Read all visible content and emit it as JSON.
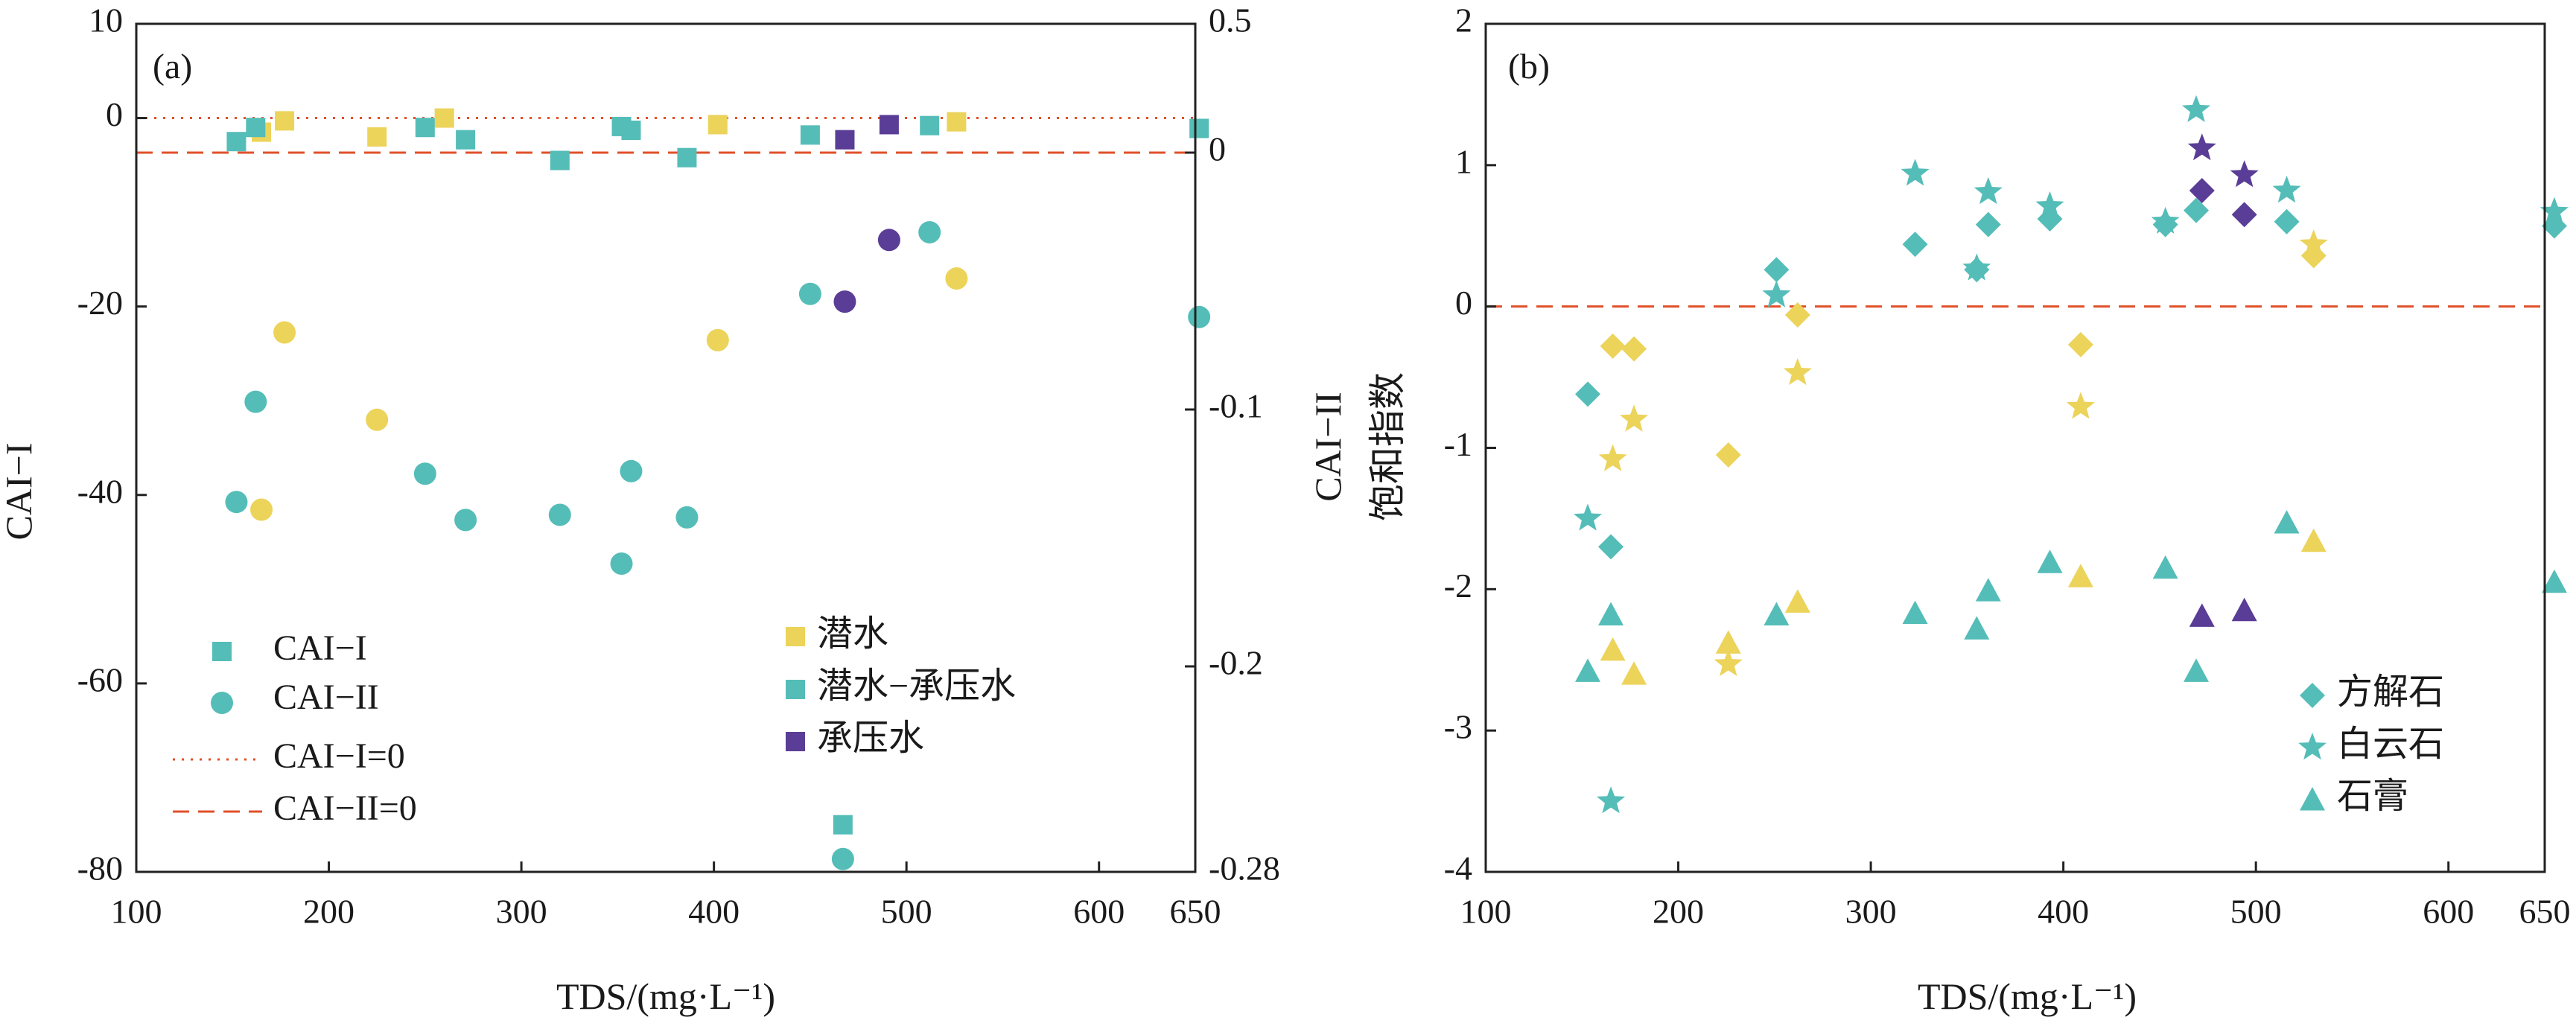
{
  "colors": {
    "phreatic": "#ecd35a",
    "phreatic_confined": "#55bdb8",
    "confined": "#5a3d96",
    "zero_line": "#e0502a",
    "axis": "#222222"
  },
  "chart_data": [
    {
      "type": "scatter",
      "panel_label": "(a)",
      "xlabel": "TDS/(mg·L⁻¹)",
      "ylabel": "CAI−I",
      "y2label": "CAI−II",
      "xlim": [
        100,
        650
      ],
      "ylim": [
        -80,
        10
      ],
      "y2lim": [
        -0.28,
        0.5
      ],
      "xticks": [
        "100",
        "200",
        "300",
        "400",
        "500",
        "600",
        "650"
      ],
      "yticks": [
        "10",
        "0",
        "-20",
        "-40",
        "-60",
        "-80"
      ],
      "y2ticks": [
        "0.5",
        "0",
        "-0.1",
        "-0.2",
        "-0.28"
      ],
      "legend_markers": {
        "items": [
          {
            "label": "CAI−I",
            "marker": "square"
          },
          {
            "label": "CAI−II",
            "marker": "circle"
          },
          {
            "label": "CAI−I=0",
            "marker": "dotted-line"
          },
          {
            "label": "CAI−II=0",
            "marker": "dashed-line"
          }
        ]
      },
      "legend_groups": {
        "items": [
          {
            "label": "潜水",
            "group": "phreatic"
          },
          {
            "label": "潜水−承压水",
            "group": "phreatic_confined"
          },
          {
            "label": "承压水",
            "group": "confined"
          }
        ]
      },
      "reference_lines": [
        {
          "label": "CAI−I=0",
          "axis": "y",
          "value": 0,
          "style": "dotted"
        },
        {
          "label": "CAI−II=0",
          "axis": "y2",
          "value": 0,
          "style": "dashed"
        }
      ],
      "series": [
        {
          "name": "CAI−I",
          "group": "phreatic",
          "marker": "square",
          "points": [
            [
              165,
              -1.5
            ],
            [
              177,
              -0.3
            ],
            [
              225,
              -2
            ],
            [
              260,
              0
            ],
            [
              402,
              -0.7
            ],
            [
              526,
              -0.4
            ]
          ]
        },
        {
          "name": "CAI−I",
          "group": "phreatic_confined",
          "marker": "square",
          "points": [
            [
              152,
              -2.5
            ],
            [
              162,
              -1
            ],
            [
              250,
              -1
            ],
            [
              271,
              -2.3
            ],
            [
              320,
              -4.5
            ],
            [
              352,
              -0.9
            ],
            [
              357,
              -1.3
            ],
            [
              386,
              -4.2
            ],
            [
              450,
              -1.8
            ],
            [
              467,
              -75
            ],
            [
              512,
              -0.8
            ],
            [
              652,
              -1.1
            ]
          ]
        },
        {
          "name": "CAI−I",
          "group": "confined",
          "marker": "square",
          "points": [
            [
              468,
              -2.3
            ],
            [
              491,
              -0.7
            ]
          ]
        },
        {
          "name": "CAI−II",
          "group": "phreatic",
          "marker": "circle",
          "points": [
            [
              165,
              -0.139
            ],
            [
              177,
              -0.07
            ],
            [
              225,
              -0.104
            ],
            [
              402,
              -0.073
            ],
            [
              526,
              -0.049
            ]
          ]
        },
        {
          "name": "CAI−II",
          "group": "phreatic_confined",
          "marker": "circle",
          "points": [
            [
              152,
              -0.136
            ],
            [
              162,
              -0.097
            ],
            [
              250,
              -0.125
            ],
            [
              271,
              -0.143
            ],
            [
              320,
              -0.141
            ],
            [
              352,
              -0.16
            ],
            [
              357,
              -0.124
            ],
            [
              386,
              -0.142
            ],
            [
              450,
              -0.055
            ],
            [
              467,
              -0.275
            ],
            [
              512,
              -0.031
            ],
            [
              652,
              -0.064
            ]
          ]
        },
        {
          "name": "CAI−II",
          "group": "confined",
          "marker": "circle",
          "points": [
            [
              468,
              -0.058
            ],
            [
              491,
              -0.034
            ]
          ]
        }
      ]
    },
    {
      "type": "scatter",
      "panel_label": "(b)",
      "xlabel": "TDS/(mg·L⁻¹)",
      "ylabel": "饱和指数",
      "xlim": [
        100,
        650
      ],
      "ylim": [
        -4,
        2
      ],
      "xticks": [
        "100",
        "200",
        "300",
        "400",
        "500",
        "600",
        "650"
      ],
      "yticks": [
        "2",
        "1",
        "0",
        "-1",
        "-2",
        "-3",
        "-4"
      ],
      "legend": {
        "items": [
          {
            "label": "方解石",
            "marker": "diamond"
          },
          {
            "label": "白云石",
            "marker": "star"
          },
          {
            "label": "石膏",
            "marker": "triangle"
          }
        ]
      },
      "reference_lines": [
        {
          "axis": "y",
          "value": 0,
          "style": "dashed"
        }
      ],
      "series": [
        {
          "name": "方解石",
          "group": "phreatic",
          "marker": "diamond",
          "points": [
            [
              166,
              -0.28
            ],
            [
              177,
              -0.3
            ],
            [
              226,
              -1.05
            ],
            [
              262,
              -0.06
            ],
            [
              409,
              -0.27
            ],
            [
              530,
              0.36
            ]
          ]
        },
        {
          "name": "方解石",
          "group": "phreatic_confined",
          "marker": "diamond",
          "points": [
            [
              153,
              -0.62
            ],
            [
              165,
              -1.7
            ],
            [
              251,
              0.26
            ],
            [
              323,
              0.44
            ],
            [
              355,
              0.26
            ],
            [
              361,
              0.58
            ],
            [
              393,
              0.62
            ],
            [
              453,
              0.58
            ],
            [
              469,
              0.68
            ],
            [
              516,
              0.6
            ],
            [
              655,
              0.57
            ]
          ]
        },
        {
          "name": "方解石",
          "group": "confined",
          "marker": "diamond",
          "points": [
            [
              472,
              0.82
            ],
            [
              494,
              0.65
            ]
          ]
        },
        {
          "name": "白云石",
          "group": "phreatic",
          "marker": "star",
          "points": [
            [
              166,
              -1.08
            ],
            [
              177,
              -0.8
            ],
            [
              226,
              -2.53
            ],
            [
              262,
              -0.47
            ],
            [
              409,
              -0.71
            ],
            [
              530,
              0.44
            ]
          ]
        },
        {
          "name": "白云石",
          "group": "phreatic_confined",
          "marker": "star",
          "points": [
            [
              153,
              -1.5
            ],
            [
              165,
              -3.5
            ],
            [
              251,
              0.08
            ],
            [
              323,
              0.94
            ],
            [
              355,
              0.27
            ],
            [
              361,
              0.81
            ],
            [
              393,
              0.71
            ],
            [
              453,
              0.6
            ],
            [
              469,
              1.39
            ],
            [
              516,
              0.82
            ],
            [
              655,
              0.67
            ]
          ]
        },
        {
          "name": "白云石",
          "group": "confined",
          "marker": "star",
          "points": [
            [
              472,
              1.12
            ],
            [
              494,
              0.93
            ]
          ]
        },
        {
          "name": "石膏",
          "group": "phreatic",
          "marker": "triangle",
          "points": [
            [
              166,
              -2.43
            ],
            [
              177,
              -2.6
            ],
            [
              226,
              -2.38
            ],
            [
              262,
              -2.09
            ],
            [
              409,
              -1.91
            ],
            [
              530,
              -1.66
            ]
          ]
        },
        {
          "name": "石膏",
          "group": "phreatic_confined",
          "marker": "triangle",
          "points": [
            [
              153,
              -2.58
            ],
            [
              165,
              -2.18
            ],
            [
              251,
              -2.18
            ],
            [
              323,
              -2.17
            ],
            [
              355,
              -2.28
            ],
            [
              361,
              -2.01
            ],
            [
              393,
              -1.81
            ],
            [
              453,
              -1.85
            ],
            [
              469,
              -2.58
            ],
            [
              516,
              -1.53
            ],
            [
              655,
              -1.95
            ]
          ]
        },
        {
          "name": "石膏",
          "group": "confined",
          "marker": "triangle",
          "points": [
            [
              472,
              -2.19
            ],
            [
              494,
              -2.15
            ]
          ]
        }
      ]
    }
  ]
}
